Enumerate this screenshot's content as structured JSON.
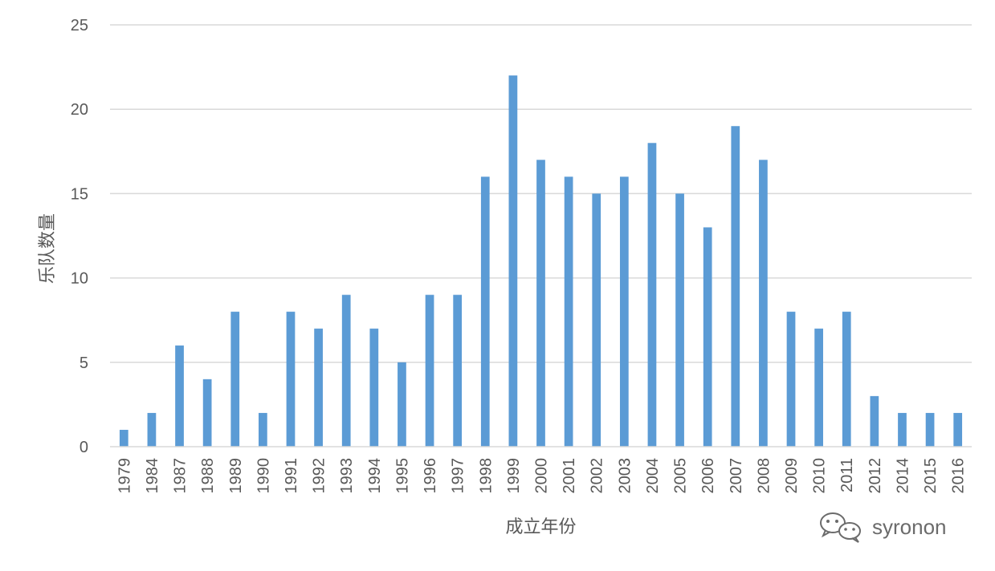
{
  "chart_data": {
    "type": "bar",
    "title": "",
    "xlabel": "成立年份",
    "ylabel": "乐队数量",
    "ylim": [
      0,
      25
    ],
    "yticks": [
      0,
      5,
      10,
      15,
      20,
      25
    ],
    "grid": true,
    "legend": "none",
    "bar_color": "#5b9bd5",
    "categories": [
      "1979",
      "1984",
      "1987",
      "1988",
      "1989",
      "1990",
      "1991",
      "1992",
      "1993",
      "1994",
      "1995",
      "1996",
      "1997",
      "1998",
      "1999",
      "2000",
      "2001",
      "2002",
      "2003",
      "2004",
      "2005",
      "2006",
      "2007",
      "2008",
      "2009",
      "2010",
      "2011",
      "2012",
      "2014",
      "2015",
      "2016"
    ],
    "values": [
      1,
      2,
      6,
      4,
      8,
      2,
      8,
      7,
      9,
      7,
      5,
      9,
      9,
      16,
      22,
      17,
      16,
      15,
      16,
      18,
      15,
      13,
      19,
      17,
      8,
      7,
      8,
      3,
      2,
      2,
      2
    ]
  },
  "watermark": {
    "text": "syronon",
    "icon": "wechat-icon"
  }
}
